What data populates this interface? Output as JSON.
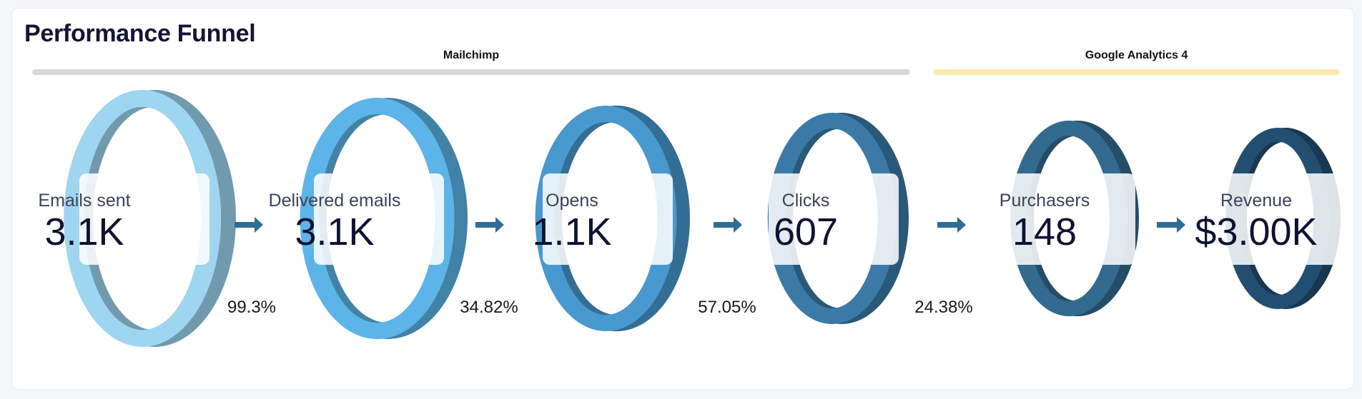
{
  "title": "Performance Funnel",
  "groups": [
    {
      "name": "Mailchimp",
      "color": "#d9d9d9"
    },
    {
      "name": "Google Analytics 4",
      "color": "#fbe8b1"
    }
  ],
  "chart_data": {
    "type": "funnel",
    "title": "Performance Funnel",
    "stages": [
      {
        "label": "Emails sent",
        "display": "3.1K",
        "value": 3100,
        "source": "Mailchimp",
        "color": "#9ed6f2"
      },
      {
        "label": "Delivered emails",
        "display": "3.1K",
        "value": 3100,
        "source": "Mailchimp",
        "color": "#5db4e8"
      },
      {
        "label": "Opens",
        "display": "1.1K",
        "value": 1100,
        "source": "Mailchimp",
        "color": "#4899cf"
      },
      {
        "label": "Clicks",
        "display": "607",
        "value": 607,
        "source": "Mailchimp",
        "color": "#3b7aa6"
      },
      {
        "label": "Purchasers",
        "display": "148",
        "value": 148,
        "source": "Google Analytics 4",
        "color": "#336a90"
      },
      {
        "label": "Revenue",
        "display": "$3.00K",
        "value": 3000,
        "source": "Google Analytics 4",
        "color": "#224e72"
      }
    ],
    "conversions": [
      {
        "display": "99.3%",
        "value": 99.3
      },
      {
        "display": "34.82%",
        "value": 34.82
      },
      {
        "display": "57.05%",
        "value": 57.05
      },
      {
        "display": "24.38%",
        "value": 24.38
      }
    ]
  }
}
